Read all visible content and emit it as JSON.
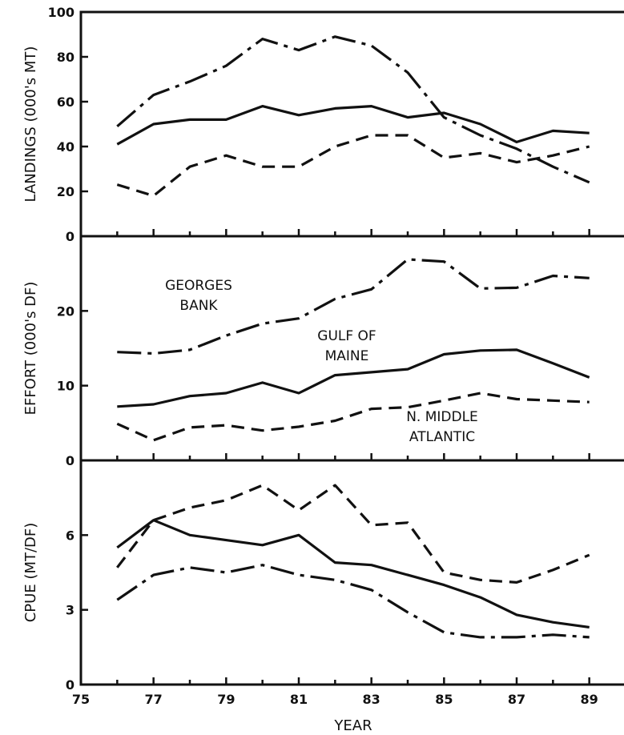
{
  "chart_data": [
    {
      "type": "line",
      "panel": "top",
      "ylabel": "LANDINGS (000's MT)",
      "xlabel": "",
      "xlim": [
        75,
        90
      ],
      "ylim": [
        0,
        100
      ],
      "y_ticks": [
        0,
        20,
        40,
        60,
        80,
        100
      ],
      "x": [
        76,
        77,
        78,
        79,
        80,
        81,
        82,
        83,
        84,
        85,
        86,
        87,
        88,
        89
      ],
      "series": [
        {
          "key": "georges_bank",
          "style": "dashdot",
          "values": [
            49,
            63,
            69,
            76,
            88,
            83,
            89,
            85,
            73,
            53,
            45,
            39,
            31,
            24
          ]
        },
        {
          "key": "gulf_of_maine",
          "style": "solid",
          "values": [
            41,
            50,
            52,
            52,
            58,
            54,
            57,
            58,
            53,
            55,
            50,
            42,
            47,
            46
          ]
        },
        {
          "key": "n_middle_atlantic",
          "style": "dashed",
          "values": [
            23,
            18,
            31,
            36,
            31,
            31,
            40,
            45,
            45,
            35,
            37,
            33,
            36,
            40
          ]
        }
      ]
    },
    {
      "type": "line",
      "panel": "middle",
      "ylabel": "EFFORT (000's DF)",
      "xlabel": "",
      "xlim": [
        75,
        90
      ],
      "ylim": [
        0,
        30
      ],
      "y_ticks": [
        0,
        10,
        20
      ],
      "x": [
        76,
        77,
        78,
        79,
        80,
        81,
        82,
        83,
        84,
        85,
        86,
        87,
        88,
        89
      ],
      "series": [
        {
          "key": "georges_bank",
          "name": "GEORGES BANK",
          "style": "dashdot",
          "values": [
            14.5,
            14.3,
            14.8,
            16.7,
            18.3,
            19.0,
            21.6,
            22.9,
            26.9,
            26.6,
            23.0,
            23.1,
            24.7,
            24.4
          ]
        },
        {
          "key": "gulf_of_maine",
          "name": "GULF OF MAINE",
          "style": "solid",
          "values": [
            7.2,
            7.5,
            8.6,
            9.0,
            10.4,
            9.0,
            11.4,
            11.8,
            12.2,
            14.2,
            14.7,
            14.8,
            13.0,
            11.1
          ]
        },
        {
          "key": "n_middle_atlantic",
          "name": "N. MIDDLE ATLANTIC",
          "style": "dashed",
          "values": [
            4.9,
            2.7,
            4.4,
            4.7,
            4.0,
            4.5,
            5.3,
            6.9,
            7.1,
            8.0,
            9.0,
            8.2,
            8.0,
            7.8
          ]
        }
      ],
      "annotations": [
        {
          "series": "georges_bank",
          "lines": [
            "GEORGES",
            "BANK"
          ]
        },
        {
          "series": "gulf_of_maine",
          "lines": [
            "GULF OF",
            "MAINE"
          ]
        },
        {
          "series": "n_middle_atlantic",
          "lines": [
            "N. MIDDLE",
            "ATLANTIC"
          ]
        }
      ]
    },
    {
      "type": "line",
      "panel": "bottom",
      "ylabel": "CPUE (MT/DF)",
      "xlabel": "YEAR",
      "xlim": [
        75,
        90
      ],
      "ylim": [
        0,
        9
      ],
      "y_ticks": [
        0,
        3,
        6
      ],
      "x_ticks": [
        75,
        77,
        79,
        81,
        83,
        85,
        87,
        89
      ],
      "x": [
        76,
        77,
        78,
        79,
        80,
        81,
        82,
        83,
        84,
        85,
        86,
        87,
        88,
        89
      ],
      "series": [
        {
          "key": "gulf_of_maine",
          "style": "solid",
          "values": [
            5.5,
            6.6,
            6.0,
            5.8,
            5.6,
            6.0,
            4.9,
            4.8,
            4.4,
            4.0,
            3.5,
            2.8,
            2.5,
            2.3
          ]
        },
        {
          "key": "n_middle_atlantic",
          "style": "dashed",
          "values": [
            4.7,
            6.6,
            7.1,
            7.4,
            8.0,
            7.0,
            8.0,
            6.4,
            6.5,
            4.5,
            4.2,
            4.1,
            4.6,
            5.2
          ]
        },
        {
          "key": "georges_bank",
          "style": "dashdot",
          "values": [
            3.4,
            4.4,
            4.7,
            4.5,
            4.8,
            4.4,
            4.2,
            3.8,
            2.9,
            2.1,
            1.9,
            1.9,
            2.0,
            1.9
          ]
        }
      ]
    }
  ]
}
